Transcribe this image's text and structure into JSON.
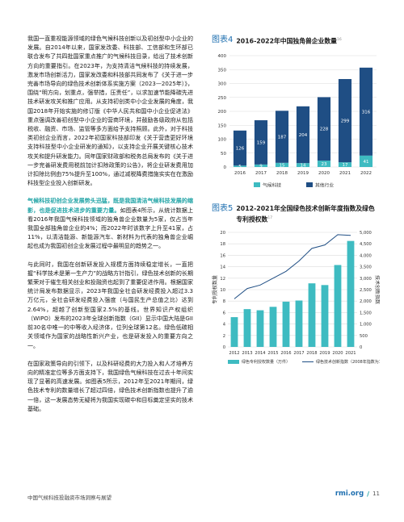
{
  "body_paragraphs": [
    "我国一直重视能源领域的绿色气候科技创新以及初创型中小企业的发展。自2014年以来，国家发改委、科技部、工信部和生环部已联合发布了共四批国家重点推广的气候科技目录，给出了技术创新方向的重要指引。在2023年，为支持清洁气候科技的持续发展，激发市场创新活力，国家发改委和科技部共同发布了《关于进一步完善市场导向的绿色技术创新体系实施方案（2023—2025年）》，围绕“明方向，划重点，强举措，压责任”，以求加速节能降碳先进技术研发攻关和推广应用。从支持初创类中小企业发展的角度，我国2018年开始实施的修订版《中华人民共和国中小企业促进法》重点强调改善初创型中小企业的营商环境，并鼓励各级政府从包括税收、融资、市场、监管等多方面给予支持照顾。此外，对于科技类初创企业而言，2022年初国家科技部印发《关于营造更好环境支持科技型中小企业研发的通知》，以支持企业开展关键核心技术攻关和提升研发能力。同年国家财政部和税务总局发布的《关于进一步完善研发费用税前加计扣除政策的公告》，将企业研发费用加计扣除比例由75%提升至100%，通过减税降费措施实实在在激励科技型企业投入创新研发。",
    "气候科技初创企业发展势头迅猛，既是我国清洁气候科技发展的缩影，也是促进技术进步的重要力量。",
    "如图表4所示，从统计数据上看2016年我国气候科技领域的独角兽企业数量为5家，仅占当年我国全部独角兽企业的4%；而2022年时该数字上升至41家，占11%，以清洁能源、新能源汽车、新材料为代表的独角兽企业崛起也成为我国初创企业发展过程中最明显的趋势之一。",
    "与此同时，我国在创新研发投入规模方面持续稳定增长，一直把握“科学技术是第一生产力”的战略方针指引，绿色技术创新的长期繁荣对于催生相关创业和投融资也起到了重要促进作用。根据国家统计局发布数据显示，2023年我国全社会研发经费投入超过3.3万亿元，全社会研发经费投入强度（与国民生产总值之比）达到2.64%，超越了创新型国家2.5%的基线。世界知识产权组织（WIPO）发布的2023年全球创新指数（GII）显示中国大陆是GII前30名中唯一的中等收入经济体，位列全球第12名。绿色低碳相关领域作为国家的战略性新兴产业，也是研发投入的重要方向之一。",
    "在国家政策导向的引领下，以及科研经费的大力投入和人才培养方向的精准定位等多方面支持下，我国绿色气候科技在过去十年间实现了显著的高速发展。如图表5所示，2012年至2021年期间，绿色技术专利的数量增长了超过四倍，绿色技术创新指数也提升了逾一倍，这一发展态势无疑将为我国实现碳中和目标奠定坚实的技术基础。"
  ],
  "footer": {
    "left": "中国气候科技投融资市场洞察与展望",
    "brand": "rmi.org",
    "sep": "/",
    "page": "11"
  },
  "figure4": {
    "num": "图表4",
    "title": "2016-2022年中国独角兽企业数量",
    "sup": "16"
  },
  "figure5": {
    "num": "图表5",
    "title": "2012-2021年全国绿色技术创新年度指数及绿色专利授权数",
    "sup": "17"
  },
  "chart_data": [
    {
      "type": "bar",
      "stacked": true,
      "categories": [
        "2016",
        "2017",
        "2018",
        "2019",
        "2020",
        "2021",
        "2022"
      ],
      "series": [
        {
          "name": "气候科技",
          "values": [
            5,
            9,
            15,
            14,
            23,
            17,
            41
          ],
          "color": "#3ebbc1"
        },
        {
          "name": "其他行业",
          "values": [
            126,
            159,
            187,
            204,
            228,
            299,
            316
          ],
          "color": "#1f4e84"
        }
      ],
      "ylim": [
        0,
        400
      ],
      "yticks": [
        0,
        50,
        100,
        150,
        200,
        250,
        300,
        350,
        400
      ],
      "grid": true,
      "legend": "bottom"
    },
    {
      "type": "bar+line",
      "categories": [
        "2012",
        "2013",
        "2014",
        "2015",
        "2016",
        "2017",
        "2018",
        "2019",
        "2020",
        "2021"
      ],
      "bars": {
        "name": "绿色专利授权数量（万件）",
        "values": [
          5.2,
          6.6,
          6.4,
          7.0,
          7.9,
          8.1,
          11.1,
          10.8,
          14.3,
          18.5
        ],
        "color": "#3ebbc1"
      },
      "line": {
        "name": "绿色技术创新指数（2008年指数为1000）",
        "values": [
          2100,
          2550,
          2700,
          3000,
          3300,
          3750,
          4300,
          4450,
          4900,
          4870
        ],
        "color": "#1f4e84"
      },
      "ylabel": "专利授权数量",
      "y2label": "技术创新指数",
      "ylim": [
        0,
        20
      ],
      "yticks": [
        0,
        2,
        4,
        6,
        8,
        10,
        12,
        14,
        16,
        18,
        20
      ],
      "y2lim": [
        0,
        5000
      ],
      "y2ticks": [
        "0",
        "500",
        "1,000",
        "1,500",
        "2,000",
        "2,500",
        "3,000",
        "3,500",
        "4,000",
        "4,500",
        "5,000"
      ],
      "grid": true,
      "legend": "bottom"
    }
  ]
}
